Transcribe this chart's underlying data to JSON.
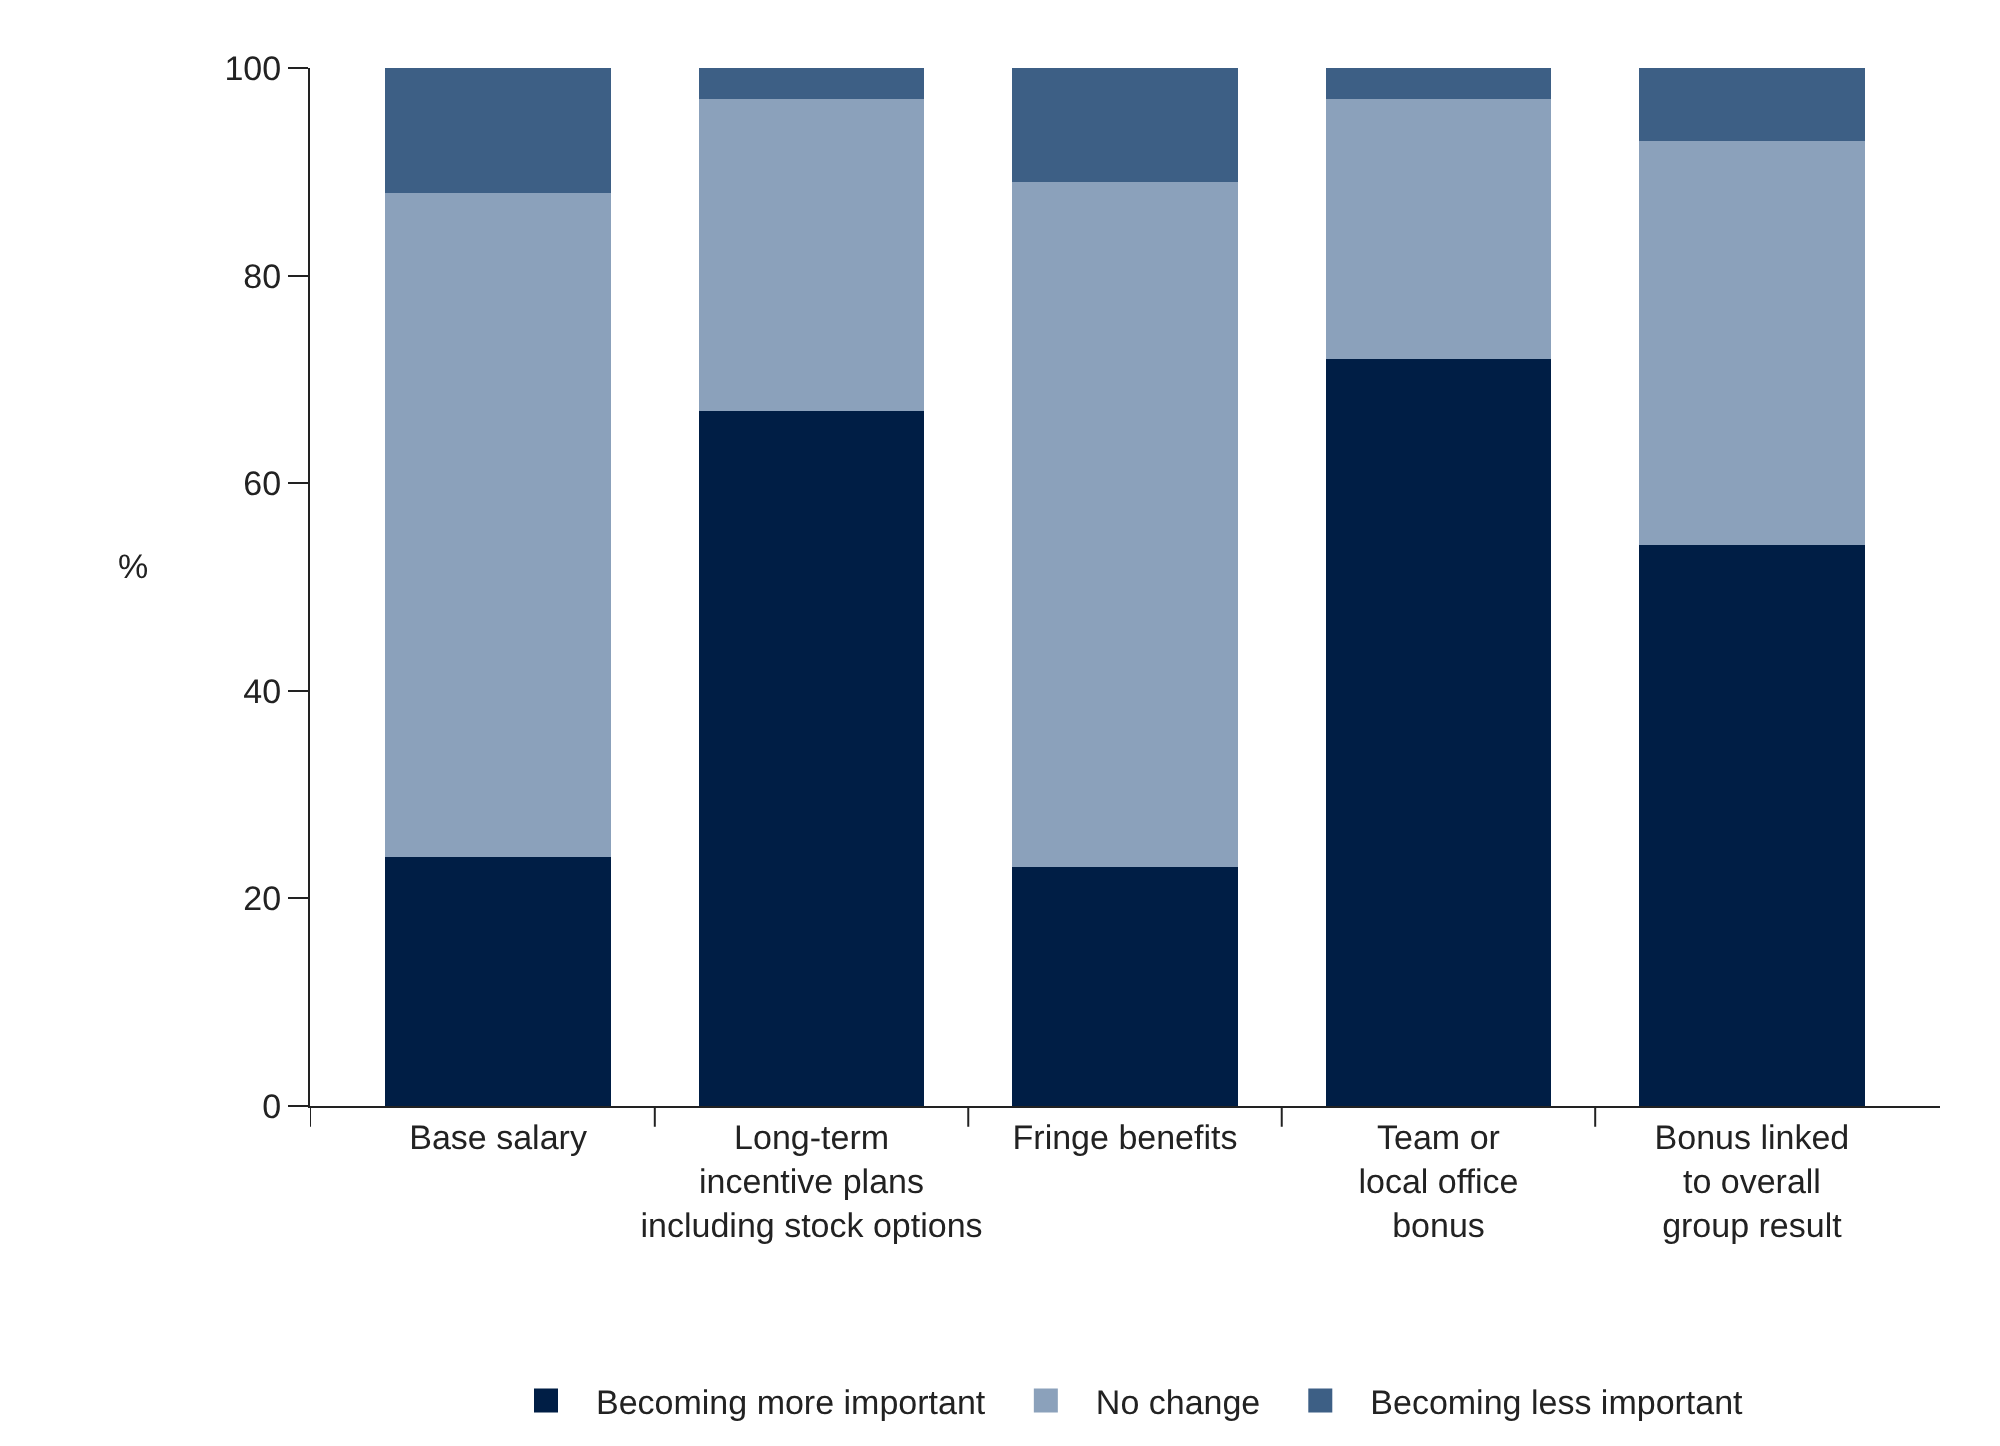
{
  "chart_data": {
    "type": "bar",
    "stacked": true,
    "ylabel": "%",
    "categories": [
      "Base salary",
      "Long-term\nincentive plans\nincluding stock options",
      "Fringe benefits",
      "Team or\nlocal office\nbonus",
      "Bonus linked\nto overall\ngroup result"
    ],
    "series": [
      {
        "name": "Becoming more important",
        "color": "#001e45",
        "values": [
          24,
          67,
          23,
          72,
          54
        ]
      },
      {
        "name": "No change",
        "color": "#8ba1bb",
        "values": [
          64,
          30,
          66,
          25,
          39
        ]
      },
      {
        "name": "Becoming less important",
        "color": "#3d5f85",
        "values": [
          12,
          3,
          11,
          3,
          7
        ]
      }
    ],
    "ylim": [
      0,
      100
    ],
    "yticks": [
      0,
      20,
      40,
      60,
      80,
      100
    ],
    "grid": false,
    "legend": "bottom"
  }
}
